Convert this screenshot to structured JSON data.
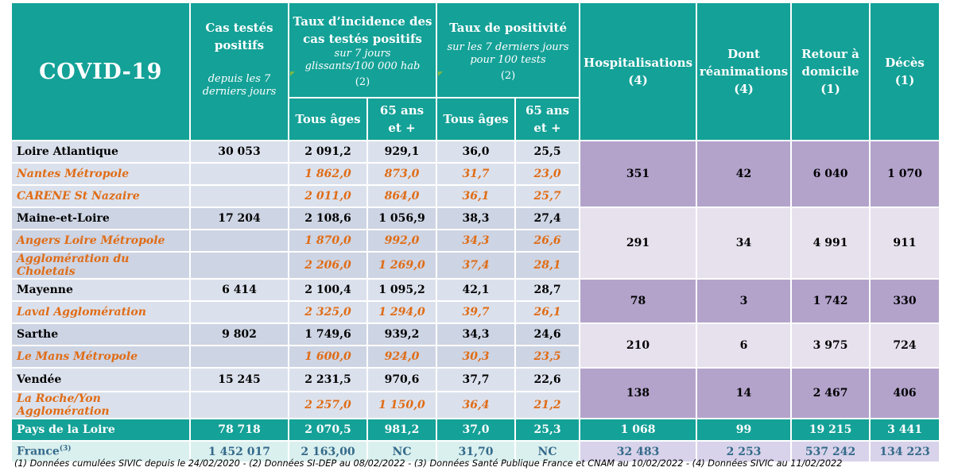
{
  "header": {
    "title": "COVID-19",
    "cas_tests": {
      "title_l1": "Cas testés",
      "title_l2": "positifs",
      "sub_l1": "depuis les 7",
      "sub_l2": "derniers jours"
    },
    "incidence": {
      "title_l1": "Taux d’incidence des",
      "title_l2": "cas testés positifs",
      "sub_l1": "sur 7 jours",
      "sub_l2": "glissants/100 000 hab",
      "note": "(2)"
    },
    "positivite": {
      "title_l1": "Taux de positivité",
      "sub_l1": "sur les 7 derniers jours",
      "sub_l2": "pour 100 tests",
      "note": "(2)"
    },
    "tous_ages": "Tous âges",
    "ans65_l1": "65 ans",
    "ans65_l2": "et +",
    "hospitalisations": {
      "label": "Hospitalisations",
      "note": "(4)"
    },
    "reanimations": {
      "label_l1": "Dont",
      "label_l2": "réanimations",
      "note": "(4)"
    },
    "retour": {
      "label_l1": "Retour à",
      "label_l2": "domicile",
      "note": "(1)"
    },
    "deces": {
      "label": "Décès",
      "note": "(1)"
    }
  },
  "rows": [
    {
      "name": "Loire Atlantique",
      "cas": "30 053",
      "inc_tous": "2 091,2",
      "inc_65": "929,1",
      "pos_tous": "36,0",
      "pos_65": "25,5",
      "hosp": "351",
      "rea": "42",
      "retour": "6 040",
      "deces": "1 070",
      "subs": [
        {
          "name": "Nantes Métropole",
          "inc_tous": "1 862,0",
          "inc_65": "873,0",
          "pos_tous": "31,7",
          "pos_65": "23,0"
        },
        {
          "name": "CARENE St Nazaire",
          "inc_tous": "2 011,0",
          "inc_65": "864,0",
          "pos_tous": "36,1",
          "pos_65": "25,7"
        }
      ]
    },
    {
      "name": "Maine-et-Loire",
      "cas": "17 204",
      "inc_tous": "2 108,6",
      "inc_65": "1 056,9",
      "pos_tous": "38,3",
      "pos_65": "27,4",
      "hosp": "291",
      "rea": "34",
      "retour": "4 991",
      "deces": "911",
      "subs": [
        {
          "name": "Angers Loire Métropole",
          "inc_tous": "1 870,0",
          "inc_65": "992,0",
          "pos_tous": "34,3",
          "pos_65": "26,6"
        },
        {
          "name": "Agglomération du Choletais",
          "inc_tous": "2 206,0",
          "inc_65": "1 269,0",
          "pos_tous": "37,4",
          "pos_65": "28,1"
        }
      ]
    },
    {
      "name": "Mayenne",
      "cas": "6 414",
      "inc_tous": "2 100,4",
      "inc_65": "1 095,2",
      "pos_tous": "42,1",
      "pos_65": "28,7",
      "hosp": "78",
      "rea": "3",
      "retour": "1 742",
      "deces": "330",
      "subs": [
        {
          "name": "Laval Agglomération",
          "inc_tous": "2 325,0",
          "inc_65": "1 294,0",
          "pos_tous": "39,7",
          "pos_65": "26,1"
        }
      ]
    },
    {
      "name": "Sarthe",
      "cas": "9 802",
      "inc_tous": "1 749,6",
      "inc_65": "939,2",
      "pos_tous": "34,3",
      "pos_65": "24,6",
      "hosp": "210",
      "rea": "6",
      "retour": "3 975",
      "deces": "724",
      "subs": [
        {
          "name": "Le Mans Métropole",
          "inc_tous": "1 600,0",
          "inc_65": "924,0",
          "pos_tous": "30,3",
          "pos_65": "23,5"
        }
      ]
    },
    {
      "name": "Vendée",
      "cas": "15 245",
      "inc_tous": "2 231,5",
      "inc_65": "970,6",
      "pos_tous": "37,7",
      "pos_65": "22,6",
      "hosp": "138",
      "rea": "14",
      "retour": "2 467",
      "deces": "406",
      "subs": [
        {
          "name": "La Roche/Yon Agglomération",
          "inc_tous": "2 257,0",
          "inc_65": "1 150,0",
          "pos_tous": "36,4",
          "pos_65": "21,2"
        }
      ]
    }
  ],
  "total": {
    "name": "Pays de la Loire",
    "cas": "78 718",
    "inc_tous": "2 070,5",
    "inc_65": "981,2",
    "pos_tous": "37,0",
    "pos_65": "25,3",
    "hosp": "1 068",
    "rea": "99",
    "retour": "19 215",
    "deces": "3 441"
  },
  "france": {
    "name": "France",
    "sup": "(3)",
    "cas": "1 452 017",
    "inc_tous": "2 163,00",
    "inc_65": "NC",
    "pos_tous": "31,70",
    "pos_65": "NC",
    "hosp": "32 483",
    "rea": "2 253",
    "retour": "537 242",
    "deces": "134 223"
  },
  "footnote": "(1) Données cumulées SIVIC depuis le 24/02/2020 - (2) Données SI-DEP  au 08/02/2022 - (3) Données Santé Publique France et CNAM au  10/02/2022 - (4) Données SIVIC au 11/02/2022",
  "colors": {
    "header_teal": "#14a197",
    "orange_sub": "#e06c16",
    "purple": "#b3a3cb",
    "light_purple": "#e7e1ee",
    "blue_row": "#dbe1ec"
  }
}
